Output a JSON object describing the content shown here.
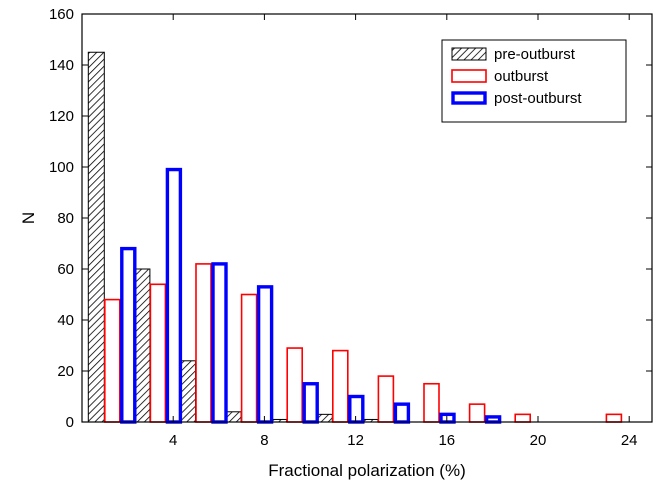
{
  "chart_data": {
    "type": "bar",
    "xlabel": "Fractional polarization (%)",
    "ylabel": "N",
    "xlim": [
      0,
      25
    ],
    "ylim": [
      0,
      160
    ],
    "xticks": [
      4,
      8,
      12,
      16,
      20,
      24
    ],
    "yticks": [
      0,
      20,
      40,
      60,
      80,
      100,
      120,
      140,
      160
    ],
    "x_labels": [
      "4",
      "8",
      "12",
      "16",
      "20",
      "24"
    ],
    "y_labels": [
      "0",
      "20",
      "40",
      "60",
      "80",
      "100",
      "120",
      "140",
      "160"
    ],
    "legend_position": "top-right",
    "grid": false,
    "series": [
      {
        "name": "pre-outburst",
        "style": "hatched",
        "color": "#000000",
        "x": [
          1,
          3,
          5,
          7,
          9,
          11,
          13
        ],
        "values": [
          145,
          60,
          24,
          4,
          1,
          3,
          1
        ]
      },
      {
        "name": "outburst",
        "style": "outline",
        "color": "#ff0000",
        "x": [
          1,
          3,
          5,
          7,
          9,
          11,
          13,
          15,
          17,
          19,
          23
        ],
        "values": [
          48,
          54,
          62,
          50,
          29,
          28,
          18,
          15,
          7,
          3,
          3
        ]
      },
      {
        "name": "post-outburst",
        "style": "thick-outline",
        "color": "#0000ff",
        "x": [
          1,
          3,
          5,
          7,
          9,
          11,
          13,
          15,
          17
        ],
        "values": [
          68,
          99,
          62,
          53,
          15,
          10,
          7,
          3,
          2
        ]
      }
    ]
  }
}
